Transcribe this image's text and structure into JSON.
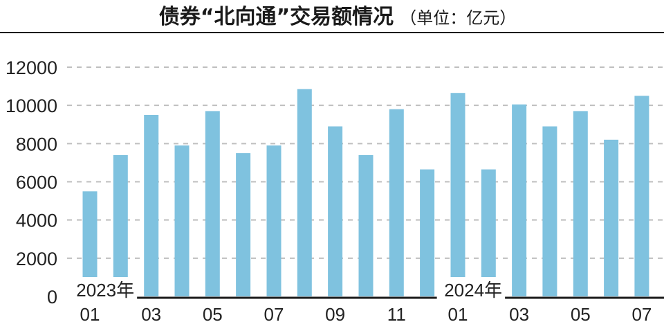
{
  "chart_data": {
    "type": "bar",
    "title": "债券“北向通”交易额情况",
    "unit": "（单位：亿元）",
    "categories": [
      "2023-01",
      "2023-02",
      "2023-03",
      "2023-04",
      "2023-05",
      "2023-06",
      "2023-07",
      "2023-08",
      "2023-09",
      "2023-10",
      "2023-11",
      "2023-12",
      "2024-01",
      "2024-02",
      "2024-03",
      "2024-04",
      "2024-05",
      "2024-06",
      "2024-07"
    ],
    "values": [
      5500,
      7400,
      9500,
      7900,
      9700,
      7500,
      7900,
      10850,
      8900,
      7400,
      9800,
      6650,
      10650,
      6650,
      10050,
      8900,
      9700,
      8200,
      10500
    ],
    "x_tick_labels": [
      "01",
      "03",
      "05",
      "07",
      "09",
      "11",
      "01",
      "03",
      "05",
      "07"
    ],
    "year_labels": [
      "2023年",
      "2024年"
    ],
    "y_ticks": [
      "0",
      "2000",
      "4000",
      "6000",
      "8000",
      "10000",
      "12000"
    ],
    "ylim": [
      0,
      12000
    ],
    "grid": true,
    "colors": {
      "bar": "#7fc2df",
      "grid": "#bfbfbf",
      "axis": "#1a1a1a"
    }
  }
}
